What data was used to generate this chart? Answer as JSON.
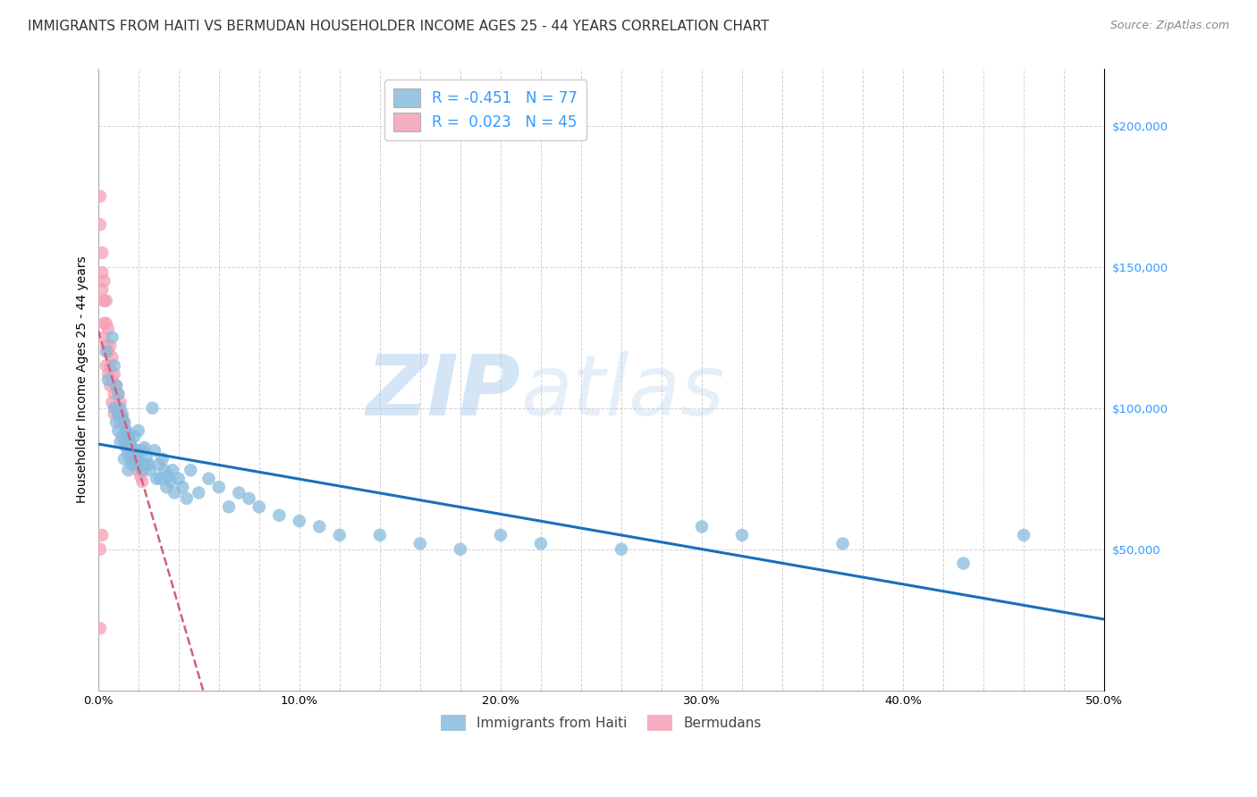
{
  "title": "IMMIGRANTS FROM HAITI VS BERMUDAN HOUSEHOLDER INCOME AGES 25 - 44 YEARS CORRELATION CHART",
  "source": "Source: ZipAtlas.com",
  "ylabel": "Householder Income Ages 25 - 44 years",
  "xlim": [
    0.0,
    0.5
  ],
  "ylim": [
    0,
    220000
  ],
  "yticks": [
    0,
    50000,
    100000,
    150000,
    200000
  ],
  "ytick_labels": [
    "",
    "$50,000",
    "$100,000",
    "$150,000",
    "$200,000"
  ],
  "xtick_labels": [
    "0.0%",
    "",
    "",
    "",
    "",
    "10.0%",
    "",
    "",
    "",
    "",
    "20.0%",
    "",
    "",
    "",
    "",
    "30.0%",
    "",
    "",
    "",
    "",
    "40.0%",
    "",
    "",
    "",
    "",
    "50.0%"
  ],
  "xticks": [
    0.0,
    0.02,
    0.04,
    0.06,
    0.08,
    0.1,
    0.12,
    0.14,
    0.16,
    0.18,
    0.2,
    0.22,
    0.24,
    0.26,
    0.28,
    0.3,
    0.32,
    0.34,
    0.36,
    0.38,
    0.4,
    0.42,
    0.44,
    0.46,
    0.48,
    0.5
  ],
  "haiti_R": -0.451,
  "haiti_N": 77,
  "bermuda_R": 0.023,
  "bermuda_N": 45,
  "haiti_color": "#88bbdd",
  "bermuda_color": "#f4a0b5",
  "haiti_line_color": "#1a6ebc",
  "bermuda_line_color": "#d06080",
  "watermark_zip": "ZIP",
  "watermark_atlas": "atlas",
  "legend_label_haiti": "Immigrants from Haiti",
  "legend_label_bermuda": "Bermudans",
  "haiti_x": [
    0.004,
    0.005,
    0.007,
    0.008,
    0.008,
    0.009,
    0.009,
    0.01,
    0.01,
    0.01,
    0.011,
    0.011,
    0.012,
    0.012,
    0.013,
    0.013,
    0.013,
    0.014,
    0.014,
    0.015,
    0.015,
    0.015,
    0.016,
    0.016,
    0.017,
    0.017,
    0.018,
    0.018,
    0.019,
    0.02,
    0.02,
    0.021,
    0.022,
    0.022,
    0.023,
    0.023,
    0.024,
    0.025,
    0.026,
    0.027,
    0.028,
    0.029,
    0.03,
    0.031,
    0.032,
    0.033,
    0.034,
    0.035,
    0.036,
    0.037,
    0.038,
    0.04,
    0.042,
    0.044,
    0.046,
    0.05,
    0.055,
    0.06,
    0.065,
    0.07,
    0.075,
    0.08,
    0.09,
    0.1,
    0.11,
    0.12,
    0.14,
    0.16,
    0.18,
    0.2,
    0.22,
    0.26,
    0.3,
    0.32,
    0.37,
    0.43,
    0.46
  ],
  "haiti_y": [
    120000,
    110000,
    125000,
    100000,
    115000,
    95000,
    108000,
    105000,
    98000,
    92000,
    100000,
    88000,
    97000,
    90000,
    95000,
    88000,
    82000,
    92000,
    86000,
    90000,
    84000,
    78000,
    88000,
    82000,
    86000,
    80000,
    90000,
    83000,
    85000,
    92000,
    82000,
    80000,
    85000,
    78000,
    86000,
    80000,
    82000,
    80000,
    78000,
    100000,
    85000,
    75000,
    80000,
    75000,
    82000,
    78000,
    72000,
    76000,
    74000,
    78000,
    70000,
    75000,
    72000,
    68000,
    78000,
    70000,
    75000,
    72000,
    65000,
    70000,
    68000,
    65000,
    62000,
    60000,
    58000,
    55000,
    55000,
    52000,
    50000,
    55000,
    52000,
    50000,
    58000,
    55000,
    52000,
    45000,
    55000
  ],
  "bermuda_x": [
    0.001,
    0.001,
    0.002,
    0.002,
    0.002,
    0.003,
    0.003,
    0.003,
    0.003,
    0.004,
    0.004,
    0.004,
    0.004,
    0.005,
    0.005,
    0.005,
    0.006,
    0.006,
    0.006,
    0.007,
    0.007,
    0.007,
    0.008,
    0.008,
    0.008,
    0.009,
    0.009,
    0.01,
    0.01,
    0.011,
    0.011,
    0.012,
    0.013,
    0.014,
    0.015,
    0.016,
    0.017,
    0.018,
    0.019,
    0.02,
    0.021,
    0.022,
    0.001,
    0.002,
    0.001
  ],
  "bermuda_y": [
    175000,
    165000,
    155000,
    148000,
    142000,
    145000,
    138000,
    130000,
    125000,
    138000,
    130000,
    122000,
    115000,
    128000,
    120000,
    112000,
    122000,
    115000,
    108000,
    118000,
    110000,
    102000,
    112000,
    105000,
    98000,
    108000,
    100000,
    105000,
    98000,
    102000,
    95000,
    98000,
    95000,
    92000,
    90000,
    88000,
    85000,
    82000,
    80000,
    78000,
    76000,
    74000,
    50000,
    55000,
    22000
  ],
  "title_fontsize": 11,
  "axis_label_fontsize": 10,
  "tick_fontsize": 9.5,
  "legend_fontsize": 11,
  "background_color": "#ffffff",
  "grid_color": "#cccccc"
}
